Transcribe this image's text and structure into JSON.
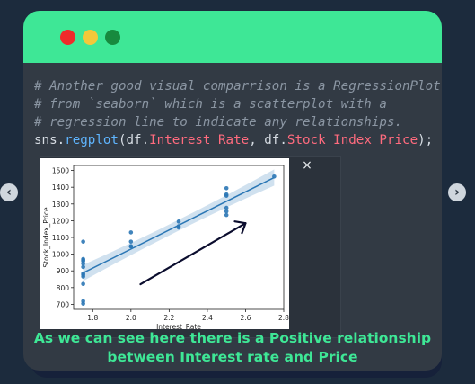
{
  "window": {
    "traffic_lights": {
      "red": "#ef2b2b",
      "yellow": "#f3c83a",
      "green": "#178a3e"
    },
    "accent": "#3ee796"
  },
  "code": {
    "comment_lines": [
      "# Another good visual comparrison is a RegressionPlot",
      "# from `seaborn` which is a scatterplot with a",
      "# regression line to indicate any relationships."
    ],
    "statement": {
      "module": "sns",
      "dot": ".",
      "function": "regplot",
      "open": "(df.",
      "arg1": "Interest_Rate",
      "sep": ", df.",
      "arg2": "Stock_Index_Price",
      "close": ");"
    }
  },
  "output": {
    "close_label": "×"
  },
  "chart_data": {
    "type": "scatter",
    "xlabel": "Interest_Rate",
    "ylabel": "Stock_Index_Price",
    "xlim": [
      1.7,
      2.8
    ],
    "ylim": [
      670,
      1530
    ],
    "xticks": [
      "1.8",
      "2.0",
      "2.2",
      "2.4",
      "2.6",
      "2.8"
    ],
    "yticks": [
      "700",
      "800",
      "900",
      "1000",
      "1100",
      "1200",
      "1300",
      "1400",
      "1500"
    ],
    "x": [
      1.75,
      1.75,
      1.75,
      1.75,
      1.75,
      1.75,
      1.75,
      1.75,
      1.75,
      1.75,
      1.75,
      1.75,
      2.0,
      2.0,
      2.0,
      2.0,
      2.25,
      2.25,
      2.25,
      2.5,
      2.5,
      2.5,
      2.5,
      2.5,
      2.5,
      2.75
    ],
    "y": [
      704,
      719,
      822,
      866,
      876,
      884,
      923,
      943,
      958,
      965,
      971,
      1075,
      1047,
      1075,
      1130,
      1047,
      1159,
      1167,
      1195,
      1234,
      1256,
      1277,
      1349,
      1357,
      1394,
      1464
    ],
    "regression": {
      "x": [
        1.75,
        2.75
      ],
      "y": [
        888,
        1458
      ]
    },
    "line_color": "#2b77b5",
    "point_color": "#2b77b5"
  },
  "annotation": {
    "arrow_color": "#0b0d2e"
  },
  "caption": {
    "line1": "As we can see here there is a Positive relationship",
    "line2": "between Interest rate and Price"
  },
  "nav": {
    "prev_label": "‹",
    "next_label": "›"
  }
}
